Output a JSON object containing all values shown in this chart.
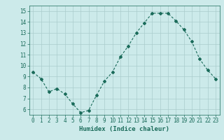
{
  "x": [
    0,
    1,
    2,
    3,
    4,
    5,
    6,
    7,
    8,
    9,
    10,
    11,
    12,
    13,
    14,
    15,
    16,
    17,
    18,
    19,
    20,
    21,
    22,
    23
  ],
  "y": [
    9.4,
    8.8,
    7.6,
    7.9,
    7.4,
    6.5,
    5.7,
    5.9,
    7.3,
    8.6,
    9.4,
    10.8,
    11.8,
    13.0,
    13.9,
    14.8,
    14.8,
    14.8,
    14.1,
    13.3,
    12.2,
    10.6,
    9.6,
    8.8
  ],
  "line_color": "#1a6b5a",
  "marker": "D",
  "marker_size": 2,
  "bg_color": "#cceaea",
  "grid_color": "#aacccc",
  "xlabel": "Humidex (Indice chaleur)",
  "ylim": [
    5.5,
    15.5
  ],
  "xlim": [
    -0.5,
    23.5
  ],
  "yticks": [
    6,
    7,
    8,
    9,
    10,
    11,
    12,
    13,
    14,
    15
  ],
  "xticks": [
    0,
    1,
    2,
    3,
    4,
    5,
    6,
    7,
    8,
    9,
    10,
    11,
    12,
    13,
    14,
    15,
    16,
    17,
    18,
    19,
    20,
    21,
    22,
    23
  ],
  "tick_label_color": "#1a6b5a",
  "xlabel_color": "#1a6b5a",
  "tick_fontsize": 5.5,
  "xlabel_fontsize": 6.5,
  "linewidth": 0.8
}
